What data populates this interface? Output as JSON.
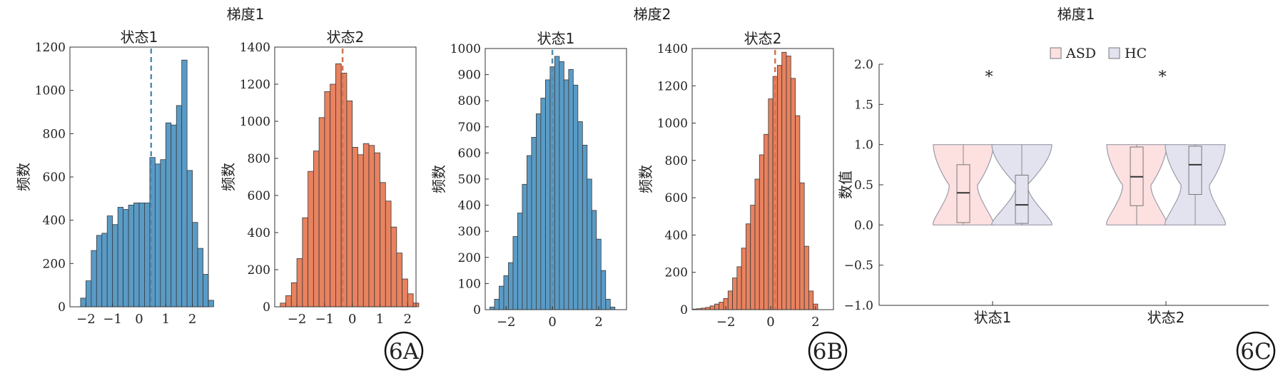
{
  "figure": {
    "group_titles": [
      "梯度1",
      "梯度2",
      "梯度1"
    ],
    "panel_labels": [
      "6A",
      "6B",
      "6C"
    ]
  },
  "colors": {
    "blue": "#5a9bc6",
    "orange": "#e8825f",
    "asd_fill": "#fde0e0",
    "hc_fill": "#e3e3f0",
    "violin_stroke": "#9a9aa8"
  },
  "chart_data": [
    {
      "type": "bar",
      "title": "状态1",
      "ylabel": "频数",
      "xlim": [
        -2.6,
        2.6
      ],
      "ylim": [
        0,
        1200
      ],
      "xticks": [
        -2,
        -1,
        0,
        1,
        2
      ],
      "yticks": [
        0,
        200,
        400,
        600,
        800,
        1000,
        1200
      ],
      "color": "blue",
      "bin_start": -2.2,
      "bin_width": 0.2,
      "values": [
        40,
        120,
        260,
        330,
        340,
        420,
        380,
        460,
        450,
        470,
        480,
        480,
        480,
        690,
        660,
        680,
        850,
        840,
        930,
        1140,
        630,
        390,
        270,
        150,
        30
      ],
      "vline": 0.45
    },
    {
      "type": "bar",
      "title": "状态2",
      "ylabel": "频数",
      "xlim": [
        -2.8,
        2.3
      ],
      "ylim": [
        0,
        1400
      ],
      "xticks": [
        -2,
        -1,
        0,
        1,
        2
      ],
      "yticks": [
        0,
        200,
        400,
        600,
        800,
        1000,
        1200,
        1400
      ],
      "color": "orange",
      "bin_start": -2.6,
      "bin_width": 0.2,
      "values": [
        20,
        60,
        130,
        260,
        480,
        730,
        840,
        1020,
        1160,
        1200,
        1310,
        1260,
        1110,
        860,
        820,
        880,
        870,
        830,
        670,
        570,
        430,
        290,
        150,
        70,
        20
      ],
      "vline": -0.35
    },
    {
      "type": "bar",
      "title": "状态1",
      "ylabel": "频数",
      "xlim": [
        -2.9,
        3.2
      ],
      "ylim": [
        0,
        1000
      ],
      "xticks": [
        -2,
        0,
        2
      ],
      "yticks": [
        0,
        100,
        200,
        300,
        400,
        500,
        600,
        700,
        800,
        900,
        1000
      ],
      "color": "blue",
      "bin_start": -2.7,
      "bin_width": 0.2,
      "values": [
        10,
        40,
        90,
        130,
        180,
        280,
        370,
        480,
        590,
        660,
        750,
        810,
        880,
        930,
        970,
        950,
        880,
        920,
        860,
        720,
        630,
        500,
        380,
        270,
        150,
        40,
        10
      ],
      "vline": 0.0
    },
    {
      "type": "bar",
      "title": "状态2",
      "ylabel": "频数",
      "xlim": [
        -3.5,
        2.8
      ],
      "ylim": [
        0,
        1400
      ],
      "xticks": [
        -2,
        0,
        2
      ],
      "yticks": [
        0,
        200,
        400,
        600,
        800,
        1000,
        1200,
        1400
      ],
      "color": "orange",
      "bin_start": -3.5,
      "bin_width": 0.2,
      "values": [
        3,
        5,
        8,
        12,
        20,
        30,
        40,
        60,
        100,
        170,
        230,
        330,
        460,
        560,
        700,
        830,
        940,
        1130,
        1250,
        1310,
        1380,
        1360,
        1240,
        1040,
        680,
        340,
        100,
        30
      ],
      "vline": 0.2
    },
    {
      "type": "violin",
      "title": "梯度1",
      "ylabel": "数值",
      "categories": [
        "状态1",
        "状态2"
      ],
      "legend": [
        "ASD",
        "HC"
      ],
      "ylim": [
        -1.0,
        2.0
      ],
      "yticks": [
        -1.0,
        -0.5,
        0.0,
        0.5,
        1.0,
        1.5,
        2.0
      ],
      "significance": [
        "*",
        "*"
      ],
      "boxes": [
        {
          "category": "状态1",
          "group": "ASD",
          "q1": 0.03,
          "median": 0.4,
          "q3": 0.75,
          "min": 0.0,
          "max": 1.0
        },
        {
          "category": "状态1",
          "group": "HC",
          "q1": 0.02,
          "median": 0.25,
          "q3": 0.62,
          "min": 0.0,
          "max": 1.0
        },
        {
          "category": "状态2",
          "group": "ASD",
          "q1": 0.24,
          "median": 0.6,
          "q3": 0.97,
          "min": 0.0,
          "max": 1.0
        },
        {
          "category": "状态2",
          "group": "HC",
          "q1": 0.38,
          "median": 0.75,
          "q3": 0.98,
          "min": 0.0,
          "max": 1.0
        }
      ]
    }
  ]
}
